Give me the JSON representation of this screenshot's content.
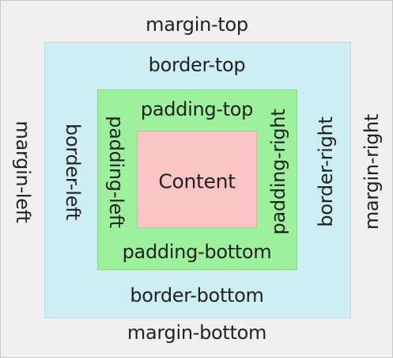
{
  "labels": {
    "margin_top": "margin-top",
    "margin_bottom": "margin-bottom",
    "margin_left": "margin-left",
    "margin_right": "margin-right",
    "border_top": "border-top",
    "border_bottom": "border-bottom",
    "border_left": "border-left",
    "border_right": "border-right",
    "padding_top": "padding-top",
    "padding_bottom": "padding-bottom",
    "padding_left": "padding-left",
    "padding_right": "padding-right",
    "content": "Content"
  },
  "colors": {
    "margin": "#f0f0f0",
    "border": "#cdeef3",
    "padding": "#9df09c",
    "content": "#fbc4c4",
    "text": "#222222"
  }
}
